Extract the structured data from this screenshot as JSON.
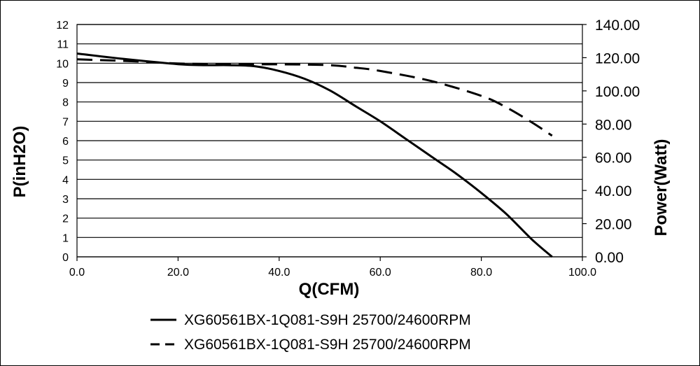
{
  "chart_data": {
    "type": "line",
    "xlabel": "Q(CFM)",
    "ylabel": "P(inH2O)",
    "y2label": "Power(Watt)",
    "xlim": [
      0,
      100
    ],
    "ylim": [
      0,
      12
    ],
    "y2lim": [
      0,
      140
    ],
    "x_ticks": [
      "0.0",
      "20.0",
      "40.0",
      "60.0",
      "80.0",
      "100.0"
    ],
    "y_ticks": [
      "0",
      "1",
      "2",
      "3",
      "4",
      "5",
      "6",
      "7",
      "8",
      "9",
      "10",
      "11",
      "12"
    ],
    "y2_ticks": [
      "0.00",
      "20.00",
      "40.00",
      "60.00",
      "80.00",
      "100.00",
      "120.00",
      "140.00"
    ],
    "grid": "horizontal",
    "legend_position": "bottom",
    "series": [
      {
        "name": "XG60561BX-1Q081-S9H 25700/24600RPM",
        "style": "solid",
        "axis": "left",
        "x": [
          0,
          10,
          20,
          25,
          30,
          35,
          40,
          45,
          50,
          55,
          60,
          65,
          70,
          75,
          80,
          85,
          90,
          94
        ],
        "y": [
          10.5,
          10.2,
          9.95,
          9.9,
          9.9,
          9.85,
          9.6,
          9.2,
          8.6,
          7.8,
          7.0,
          6.1,
          5.2,
          4.3,
          3.3,
          2.2,
          0.9,
          0
        ]
      },
      {
        "name": "XG60561BX-1Q081-S9H 25700/24600RPM",
        "style": "dashed",
        "axis": "right",
        "x": [
          0,
          10,
          20,
          30,
          40,
          50,
          55,
          60,
          70,
          80,
          85,
          90,
          94
        ],
        "y": [
          119,
          118,
          116.5,
          116,
          116,
          115.5,
          114,
          112,
          106,
          97,
          90,
          81,
          73
        ]
      }
    ]
  },
  "colors": {
    "line": "#000000",
    "grid": "#000000",
    "background": "#ffffff"
  }
}
